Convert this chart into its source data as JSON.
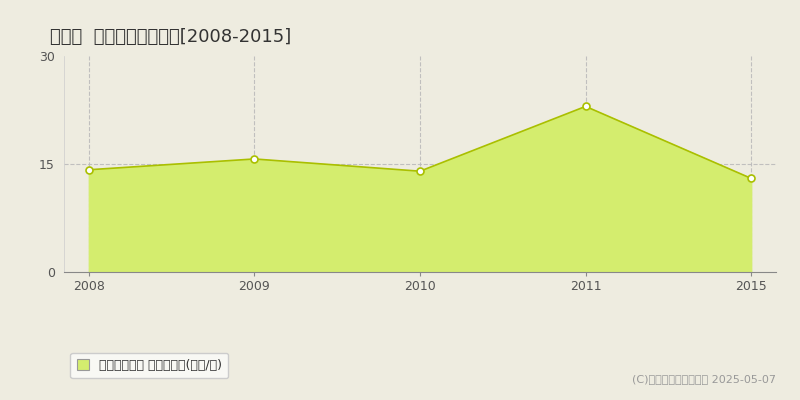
{
  "title": "庄内町  収益物件価格推移[2008-2015]",
  "years": [
    2008,
    2009,
    2010,
    2011,
    2015
  ],
  "values": [
    14.2,
    15.7,
    14.0,
    23.0,
    13.0
  ],
  "ylim": [
    0,
    30
  ],
  "yticks": [
    0,
    15,
    30
  ],
  "fill_color": "#d4ed6e",
  "line_color": "#aabf00",
  "marker_facecolor": "#ffffff",
  "marker_edgecolor": "#aabf00",
  "grid_color": "#bbbbbb",
  "bg_color": "#eeece0",
  "plot_bg_color": "#eeece0",
  "legend_label": "収益物件価格 平均啶単価(万円/坶)",
  "copyright_text": "(C)土地価格ドットコム 2025-05-07",
  "title_fontsize": 13,
  "axis_fontsize": 9,
  "legend_fontsize": 9,
  "copyright_fontsize": 8
}
